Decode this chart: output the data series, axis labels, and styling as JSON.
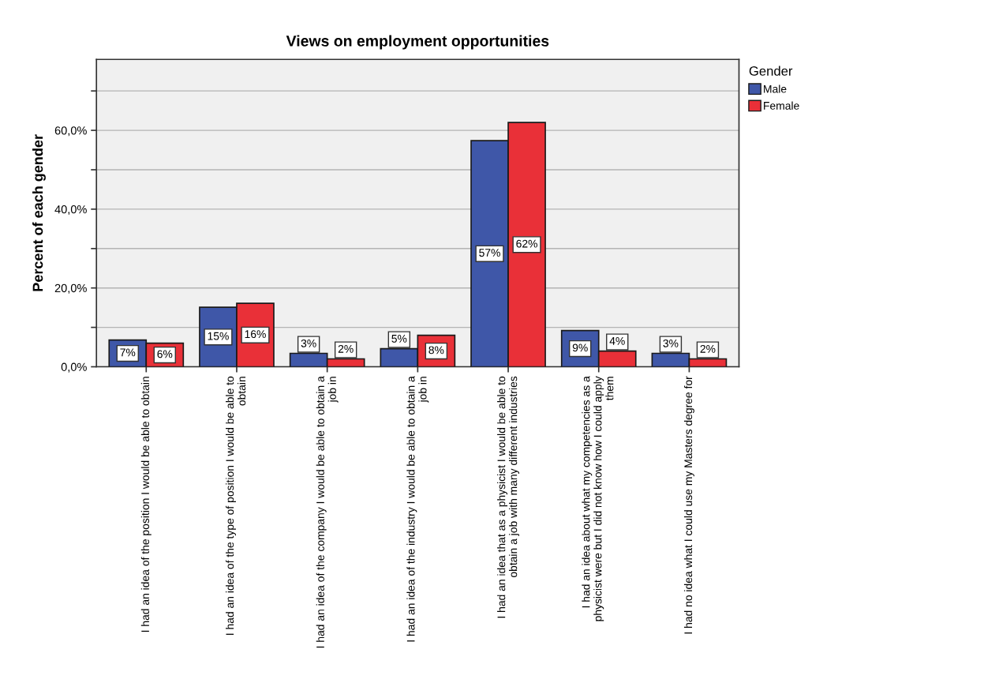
{
  "chart_data": {
    "type": "bar",
    "title": "Views on employment opportunities",
    "ylabel": "Percent of each gender",
    "legend_title": "Gender",
    "categories": [
      "I had an idea of the position I would be able to obtain",
      "I had an idea of the type of position I would be able to\nobtain",
      "I had an idea of the company I would be able to obtain a\njob in",
      "I had an idea of the industry I would be able to obtain a\njob in",
      "I had an idea that as a physicist I would be able to\nobtain a job with many different industries",
      "I had an idea about what my competencies as a\nphysicist were but I did not know how I could apply\nthem",
      "I had no idea what I could use my Masters degree for"
    ],
    "series": [
      {
        "name": "Male",
        "color": "#3f57a8",
        "values": [
          6.8,
          15.1,
          3.4,
          4.6,
          57.4,
          9.2,
          3.4
        ],
        "value_labels": [
          "7%",
          "15%",
          "3%",
          "5%",
          "57%",
          "9%",
          "3%"
        ]
      },
      {
        "name": "Female",
        "color": "#e93038",
        "values": [
          6.0,
          16.1,
          2.0,
          8.0,
          62.0,
          4.0,
          2.0
        ],
        "value_labels": [
          "6%",
          "16%",
          "2%",
          "8%",
          "62%",
          "4%",
          "2%"
        ]
      }
    ],
    "ylim": [
      0,
      78
    ],
    "yticks": [
      {
        "value": 0,
        "label": "0,0%"
      },
      {
        "value": 10,
        "label": null
      },
      {
        "value": 20,
        "label": "20,0%"
      },
      {
        "value": 30,
        "label": null
      },
      {
        "value": 40,
        "label": "40,0%"
      },
      {
        "value": 50,
        "label": null
      },
      {
        "value": 60,
        "label": "60,0%"
      },
      {
        "value": 70,
        "label": null
      }
    ],
    "grid": "y",
    "legend": "top right"
  }
}
